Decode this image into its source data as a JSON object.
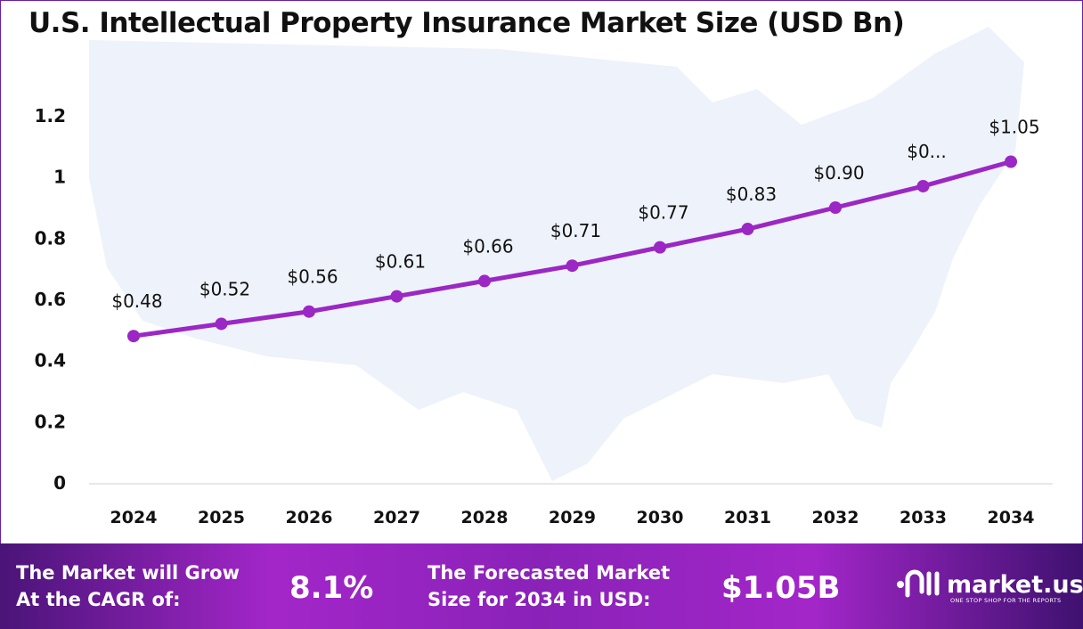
{
  "chart_data": {
    "type": "line",
    "title": "U.S. Intellectual Property Insurance Market Size (USD Bn)",
    "categories": [
      "2024",
      "2025",
      "2026",
      "2027",
      "2028",
      "2029",
      "2030",
      "2031",
      "2032",
      "2033",
      "2034"
    ],
    "values": [
      0.48,
      0.52,
      0.56,
      0.61,
      0.66,
      0.71,
      0.77,
      0.83,
      0.9,
      0.97,
      1.05
    ],
    "data_labels": [
      "$0.48",
      "$0.52",
      "$0.56",
      "$0.61",
      "$0.66",
      "$0.71",
      "$0.77",
      "$0.83",
      "$0.90",
      "$0...",
      "$1.05"
    ],
    "yticks": [
      "0",
      "0.2",
      "0.4",
      "0.6",
      "0.8",
      "1",
      "1.2"
    ],
    "ylim": [
      0,
      1.2
    ],
    "grid": false,
    "line_color": "#9b27c4",
    "background": "U.S. map silhouette"
  },
  "banner": {
    "cagr_label_line1": "The Market will Grow",
    "cagr_label_line2": "At the CAGR of:",
    "cagr_value": "8.1%",
    "forecast_label_line1": "The Forecasted Market",
    "forecast_label_line2": "Size for 2034 in USD:",
    "forecast_value": "$1.05B",
    "logo_name": "market.us",
    "logo_tagline": "ONE STOP SHOP FOR THE REPORTS"
  }
}
